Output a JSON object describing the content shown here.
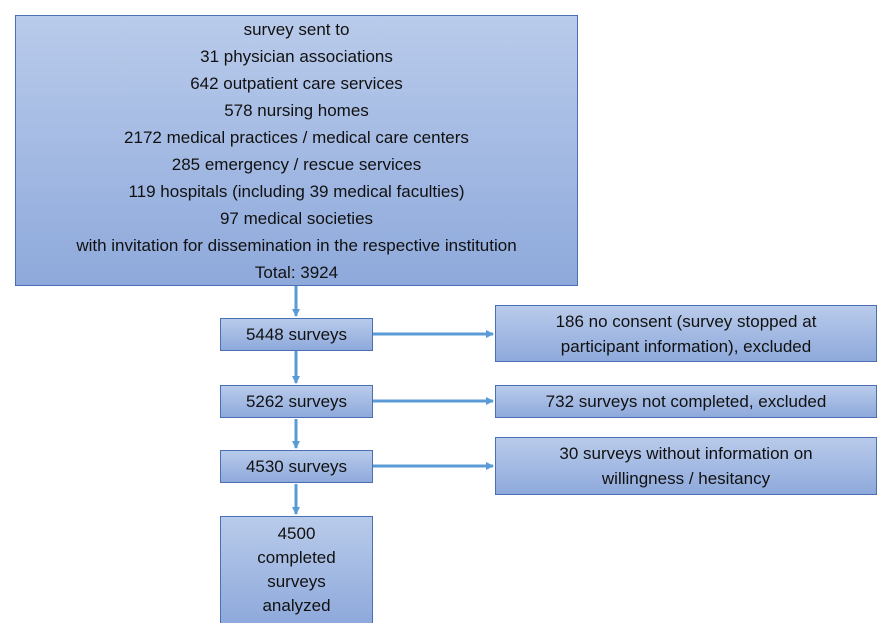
{
  "top_box": {
    "lines": [
      "survey sent to",
      "31 physician associations",
      "642 outpatient care services",
      "578 nursing homes",
      "2172 medical practices / medical care centers",
      "285 emergency / rescue services",
      "119 hospitals (including 39 medical faculties)",
      "97 medical societies",
      "with invitation for dissemination in the respective institution",
      "Total: 3924"
    ]
  },
  "flow": [
    {
      "label": "5448 surveys",
      "excluded": [
        "186 no consent (survey stopped at",
        "participant information), excluded"
      ]
    },
    {
      "label": "5262 surveys",
      "excluded": [
        "732 surveys not completed, excluded"
      ]
    },
    {
      "label": "4530 surveys",
      "excluded": [
        "30 surveys without information on",
        "willingness / hesitancy"
      ]
    }
  ],
  "final": {
    "lines": [
      "4500",
      "completed",
      "surveys",
      "analyzed"
    ]
  }
}
